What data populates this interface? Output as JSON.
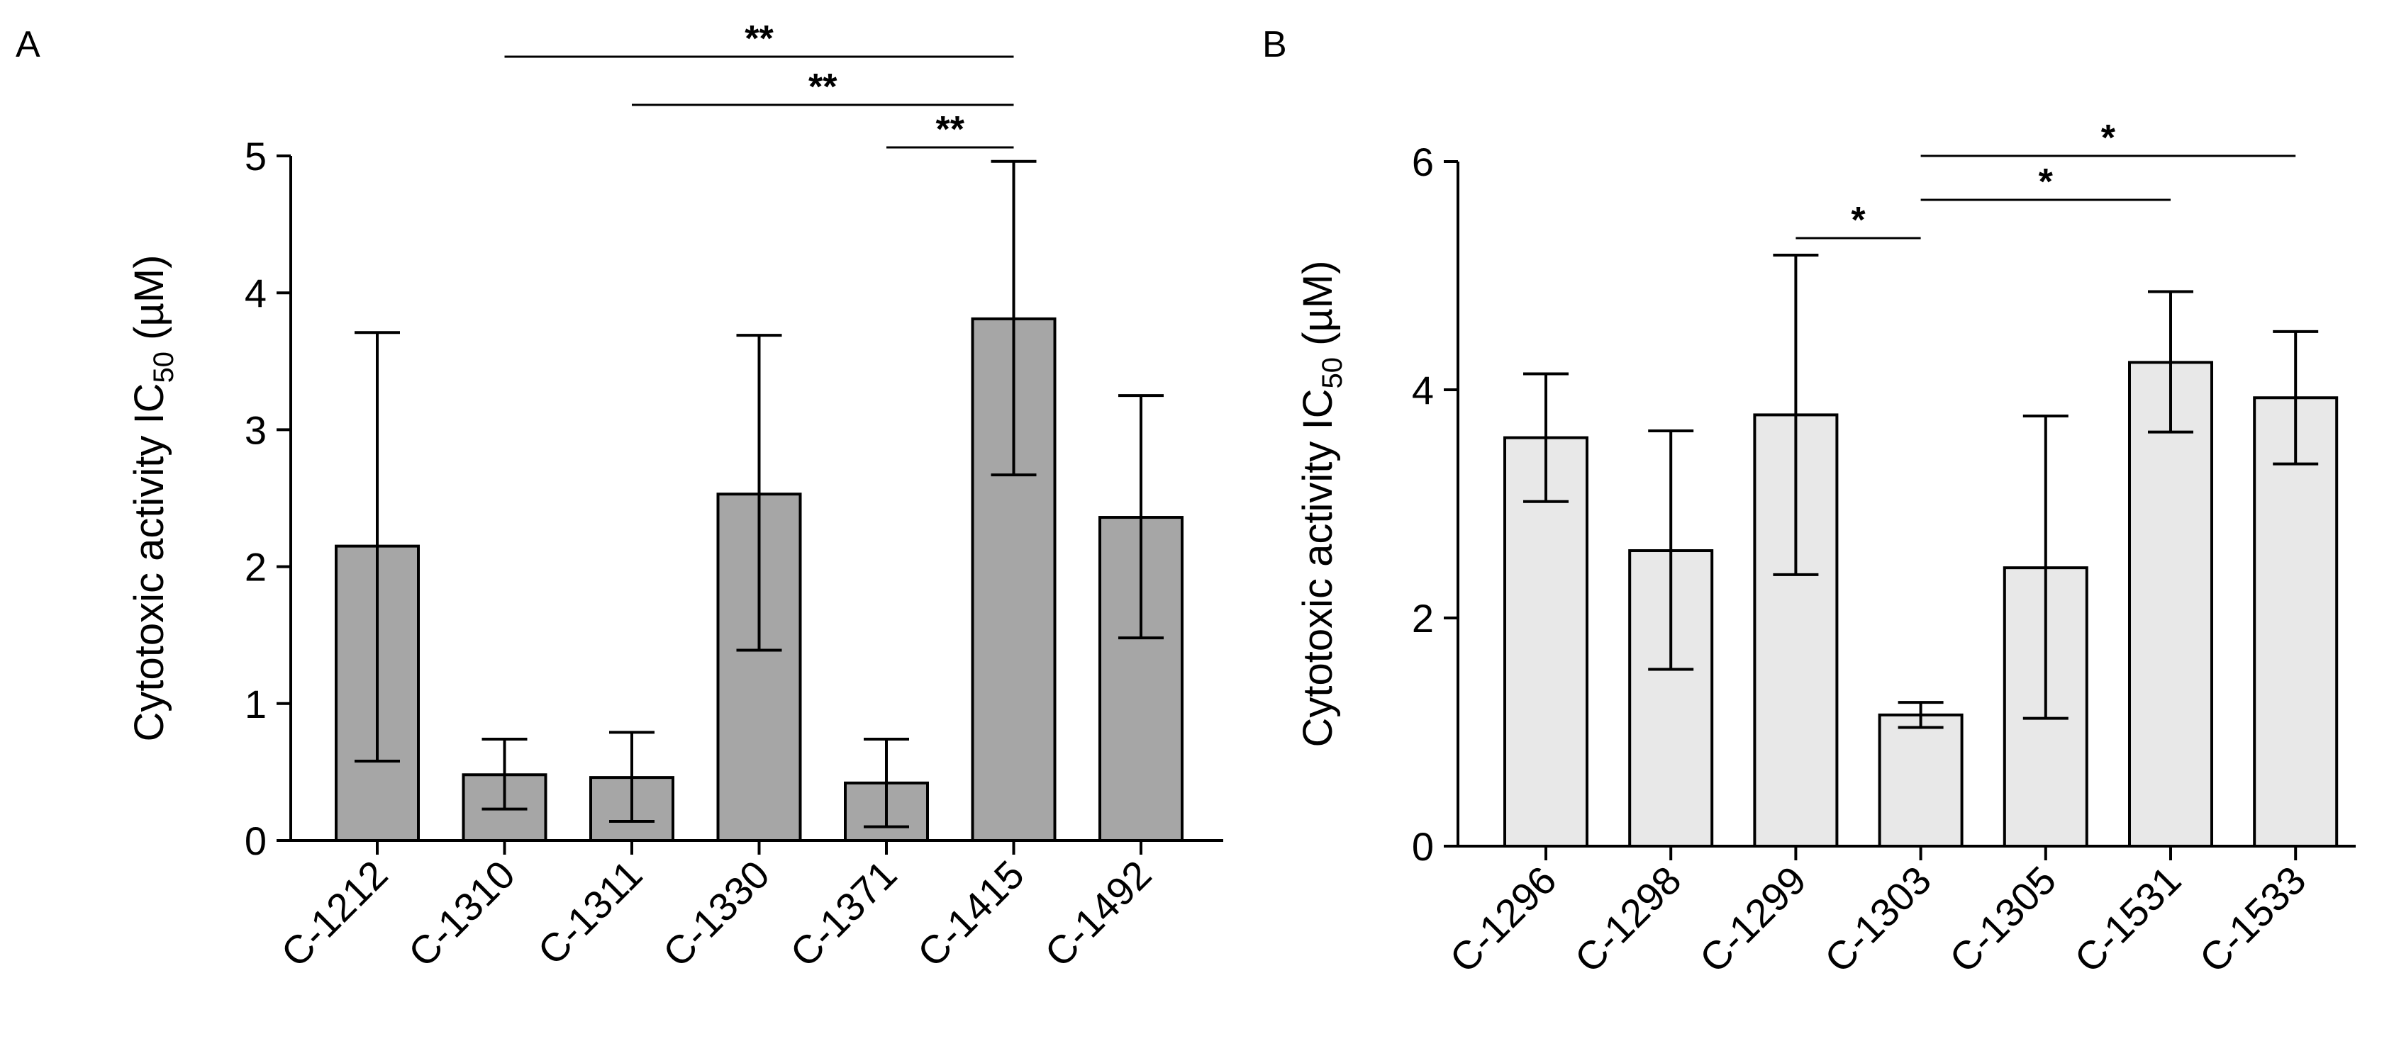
{
  "chart_data": [
    {
      "type": "bar",
      "panel_label": "A",
      "title": "",
      "ylabel": "Cytotoxic activity IC",
      "ylabel_sub": "50",
      "ylabel_unit": " (µM)",
      "xlabel": "",
      "ylim": [
        0,
        5
      ],
      "yticks": [
        0,
        1,
        2,
        3,
        4,
        5
      ],
      "bar_color": "#a6a6a6",
      "categories": [
        "C-1212",
        "C-1310",
        "C-1311",
        "C-1330",
        "C-1371",
        "C-1415",
        "C-1492"
      ],
      "values": [
        2.15,
        0.48,
        0.46,
        2.53,
        0.42,
        3.81,
        2.36
      ],
      "error_low": [
        0.58,
        0.23,
        0.14,
        1.39,
        0.1,
        2.67,
        1.48
      ],
      "error_high": [
        3.71,
        0.74,
        0.79,
        3.69,
        0.74,
        4.96,
        3.25
      ],
      "significance": [
        {
          "from": "C-1310",
          "to": "C-1415",
          "label": "**"
        },
        {
          "from": "C-1311",
          "to": "C-1415",
          "label": "**"
        },
        {
          "from": "C-1371",
          "to": "C-1415",
          "label": "**"
        }
      ]
    },
    {
      "type": "bar",
      "panel_label": "B",
      "title": "",
      "ylabel": "Cytotoxic activity IC",
      "ylabel_sub": "50",
      "ylabel_unit": " (µM)",
      "xlabel": "",
      "ylim": [
        0,
        6
      ],
      "yticks": [
        0,
        2,
        4,
        6
      ],
      "bar_color": "#e8e8e8",
      "categories": [
        "C-1296",
        "C-1298",
        "C-1299",
        "C-1303",
        "C-1305",
        "C-1531",
        "C-1533"
      ],
      "values": [
        3.58,
        2.59,
        3.78,
        1.15,
        2.44,
        4.24,
        3.93
      ],
      "error_low": [
        3.02,
        1.55,
        2.38,
        1.04,
        1.12,
        3.63,
        3.35
      ],
      "error_high": [
        4.14,
        3.64,
        5.18,
        1.26,
        3.77,
        4.86,
        4.51
      ],
      "significance": [
        {
          "from": "C-1299",
          "to": "C-1303",
          "label": "*"
        },
        {
          "from": "C-1303",
          "to": "C-1531",
          "label": "*"
        },
        {
          "from": "C-1303",
          "to": "C-1533",
          "label": "*"
        }
      ]
    }
  ]
}
